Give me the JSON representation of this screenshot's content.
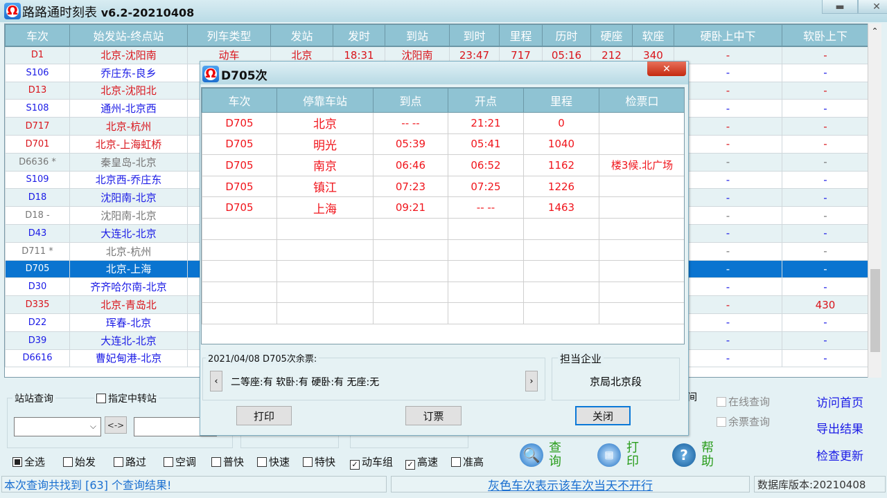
{
  "app": {
    "title": "路路通时刻表",
    "version": "v6.2-20210408",
    "minimize_icon": "minimize-icon",
    "close_icon": "close-icon"
  },
  "grid": {
    "columns": [
      "车次",
      "始发站-终点站",
      "列车类型",
      "发站",
      "发时",
      "到站",
      "到时",
      "里程",
      "历时",
      "硬座",
      "软座",
      "硬卧上中下",
      "软卧上下"
    ],
    "selected_train": "D705",
    "rows": [
      {
        "train": "D1",
        "route": "北京-沈阳南",
        "color": "red",
        "type": "动车",
        "from": "北京",
        "dep": "18:31",
        "to": "沈阳南",
        "arr": "23:47",
        "km": "717",
        "dur": "05:16",
        "hard_seat": "212",
        "soft_seat": "340",
        "hard_sleeper": "-",
        "soft_sleeper": "-"
      },
      {
        "train": "S106",
        "route": "乔庄东-良乡",
        "color": "blue",
        "hard_sleeper": "-",
        "soft_sleeper": "-"
      },
      {
        "train": "D13",
        "route": "北京-沈阳北",
        "color": "red",
        "hard_sleeper": "-",
        "soft_sleeper": "-"
      },
      {
        "train": "S108",
        "route": "通州-北京西",
        "color": "blue",
        "hard_sleeper": "-",
        "soft_sleeper": "-"
      },
      {
        "train": "D717",
        "route": "北京-杭州",
        "color": "red",
        "hard_sleeper": "-",
        "soft_sleeper": "-"
      },
      {
        "train": "D701",
        "route": "北京-上海虹桥",
        "color": "red",
        "hard_sleeper": "-",
        "soft_sleeper": "-"
      },
      {
        "train": "D6636 *",
        "route": "秦皇岛-北京",
        "color": "gray",
        "hard_sleeper": "-",
        "soft_sleeper": "-"
      },
      {
        "train": "S109",
        "route": "北京西-乔庄东",
        "color": "blue",
        "hard_sleeper": "-",
        "soft_sleeper": "-"
      },
      {
        "train": "D18",
        "route": "沈阳南-北京",
        "color": "blue",
        "hard_sleeper": "-",
        "soft_sleeper": "-"
      },
      {
        "train": "D18 -",
        "route": "沈阳南-北京",
        "color": "gray",
        "hard_sleeper": "-",
        "soft_sleeper": "-"
      },
      {
        "train": "D43",
        "route": "大连北-北京",
        "color": "blue",
        "hard_sleeper": "-",
        "soft_sleeper": "-"
      },
      {
        "train": "D711 *",
        "route": "北京-杭州",
        "color": "gray",
        "hard_sleeper": "-",
        "soft_sleeper": "-"
      },
      {
        "train": "D705",
        "route": "北京-上海",
        "color": "blue",
        "hard_sleeper": "-",
        "soft_sleeper": "-"
      },
      {
        "train": "D30",
        "route": "齐齐哈尔南-北京",
        "color": "blue",
        "hard_sleeper": "-",
        "soft_sleeper": "-"
      },
      {
        "train": "D335",
        "route": "北京-青岛北",
        "color": "red",
        "hard_sleeper": "-",
        "soft_sleeper": "430"
      },
      {
        "train": "D22",
        "route": "珲春-北京",
        "color": "blue",
        "hard_sleeper": "-",
        "soft_sleeper": "-"
      },
      {
        "train": "D39",
        "route": "大连北-北京",
        "color": "blue",
        "hard_sleeper": "-",
        "soft_sleeper": "-"
      },
      {
        "train": "D6616",
        "route": "曹妃甸港-北京",
        "color": "blue",
        "hard_sleeper": "-",
        "soft_sleeper": "-"
      }
    ]
  },
  "query": {
    "station_group": "站站查询",
    "transfer_label": "指定中转站",
    "transfer_checked": false,
    "swap_label": "<->",
    "from_value": "",
    "to_value": "",
    "partial_label": "间",
    "online_label": "在线查询",
    "remaining_label": "余票查询"
  },
  "filters": [
    {
      "label": "全选",
      "state": "partial"
    },
    {
      "label": "始发",
      "state": "off"
    },
    {
      "label": "路过",
      "state": "off"
    },
    {
      "label": "空调",
      "state": "off"
    },
    {
      "label": "普快",
      "state": "off"
    },
    {
      "label": "快速",
      "state": "off"
    },
    {
      "label": "特快",
      "state": "off"
    },
    {
      "label": "动车组",
      "state": "on"
    },
    {
      "label": "高速",
      "state": "on"
    },
    {
      "label": "准高",
      "state": "off"
    }
  ],
  "actions": [
    {
      "label": "查询",
      "icon": "search-icon"
    },
    {
      "label": "打印",
      "icon": "printer-icon"
    },
    {
      "label": "帮助",
      "icon": "help-icon"
    }
  ],
  "links": [
    "访问首页",
    "导出结果",
    "检查更新"
  ],
  "status": {
    "result": "本次查询共找到 [63] 个查询结果!",
    "legend": "灰色车次表示该车次当天不开行",
    "db_version": "数据库版本:20210408"
  },
  "dialog": {
    "title": "D705次",
    "columns": [
      "车次",
      "停靠车站",
      "到点",
      "开点",
      "里程",
      "检票口"
    ],
    "stops": [
      {
        "train": "D705",
        "station": "北京",
        "arr": "-- --",
        "dep": "21:21",
        "km": "0",
        "gate": ""
      },
      {
        "train": "D705",
        "station": "明光",
        "arr": "05:39",
        "dep": "05:41",
        "km": "1040",
        "gate": ""
      },
      {
        "train": "D705",
        "station": "南京",
        "arr": "06:46",
        "dep": "06:52",
        "km": "1162",
        "gate": "楼3候.北广场"
      },
      {
        "train": "D705",
        "station": "镇江",
        "arr": "07:23",
        "dep": "07:25",
        "km": "1226",
        "gate": ""
      },
      {
        "train": "D705",
        "station": "上海",
        "arr": "09:21",
        "dep": "-- --",
        "km": "1463",
        "gate": ""
      }
    ],
    "tickets_label": "2021/04/08 D705次余票:",
    "tickets": "二等座:有 软卧:有 硬卧:有 无座:无",
    "operator_label": "担当企业",
    "operator": "京局北京段",
    "print": "打印",
    "book": "订票",
    "close": "关闭"
  },
  "colors": {
    "header": "#8fc3d3",
    "selected": "#0a74d0",
    "red": "#d9141b",
    "blue": "#1a1ae6",
    "gray": "#777777",
    "green": "#2a9d1c"
  }
}
